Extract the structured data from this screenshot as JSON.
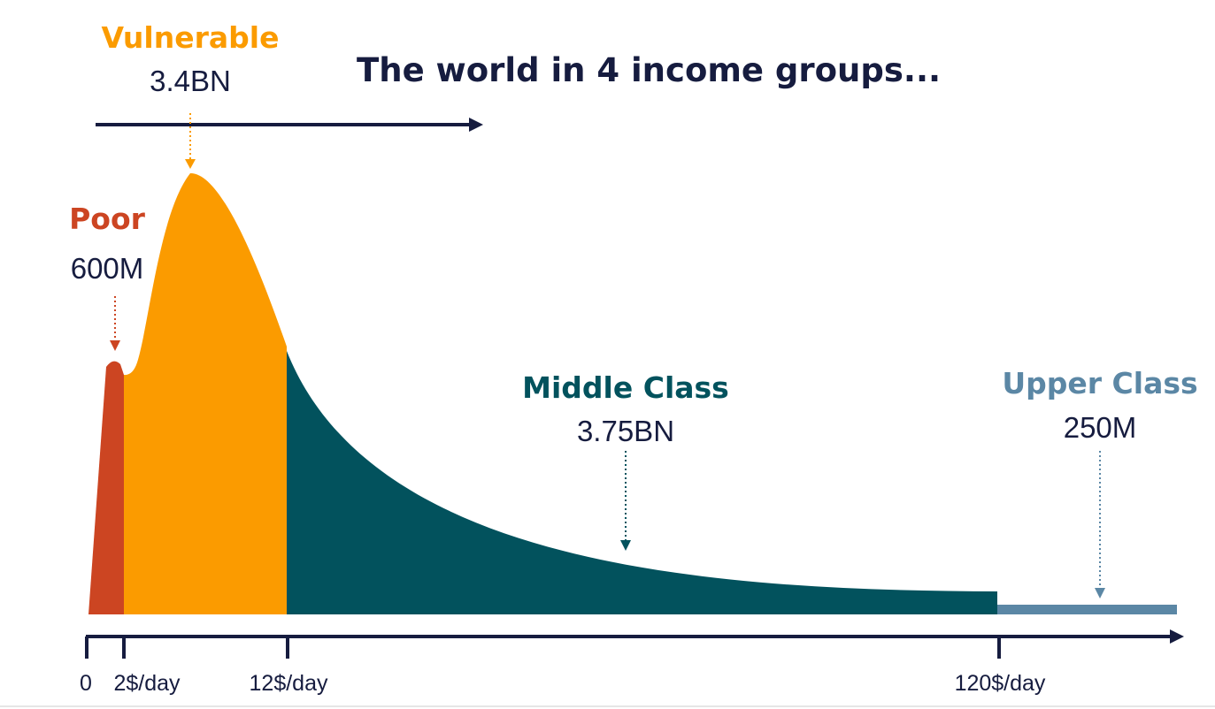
{
  "chart_data": {
    "type": "area",
    "title": "The world in 4 income groups...",
    "x_ticks": [
      "0",
      "2$/day",
      "12$/day",
      "120$/day"
    ],
    "groups": [
      {
        "key": "poor",
        "name": "Poor",
        "value": "600M",
        "range": "0–2$/day",
        "color": "#cc4522"
      },
      {
        "key": "vulnerable",
        "name": "Vulnerable",
        "value": "3.4BN",
        "range": "2–12$/day",
        "color": "#fb9b00"
      },
      {
        "key": "middle",
        "name": "Middle Class",
        "value": "3.75BN",
        "range": "12–120$/day",
        "color": "#02525d"
      },
      {
        "key": "upper",
        "name": "Upper Class",
        "value": "250M",
        "range": ">120$/day",
        "color": "#5b87a5"
      }
    ],
    "axis_color": "#161c3f"
  }
}
